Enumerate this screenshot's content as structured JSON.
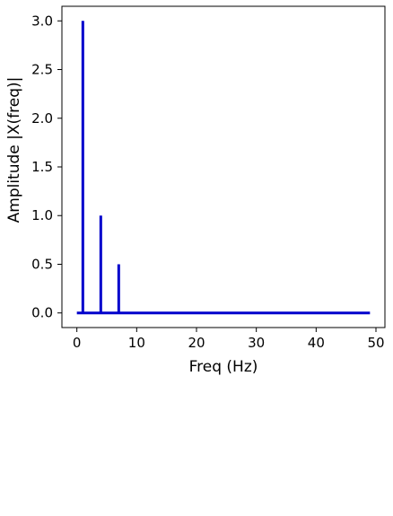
{
  "chart_data": {
    "type": "stem",
    "title": "",
    "xlabel": "Freq (Hz)",
    "ylabel": "Amplitude |X(freq)|",
    "xlim": [
      -2.5,
      51.5
    ],
    "ylim": [
      -0.15,
      3.15
    ],
    "x_ticks": [
      0,
      10,
      20,
      30,
      40,
      50
    ],
    "y_ticks": [
      0.0,
      0.5,
      1.0,
      1.5,
      2.0,
      2.5,
      3.0
    ],
    "x_tick_labels": [
      "0",
      "10",
      "20",
      "30",
      "40",
      "50"
    ],
    "y_tick_labels": [
      "0.0",
      "0.5",
      "1.0",
      "1.5",
      "2.0",
      "2.5",
      "3.0"
    ],
    "grid": false,
    "series": [
      {
        "color": "#0000cc",
        "baseline": {
          "x_start": 0,
          "x_end": 49,
          "y": 0
        },
        "x": [
          1,
          4,
          7
        ],
        "y": [
          3.0,
          1.0,
          0.5
        ]
      }
    ]
  }
}
